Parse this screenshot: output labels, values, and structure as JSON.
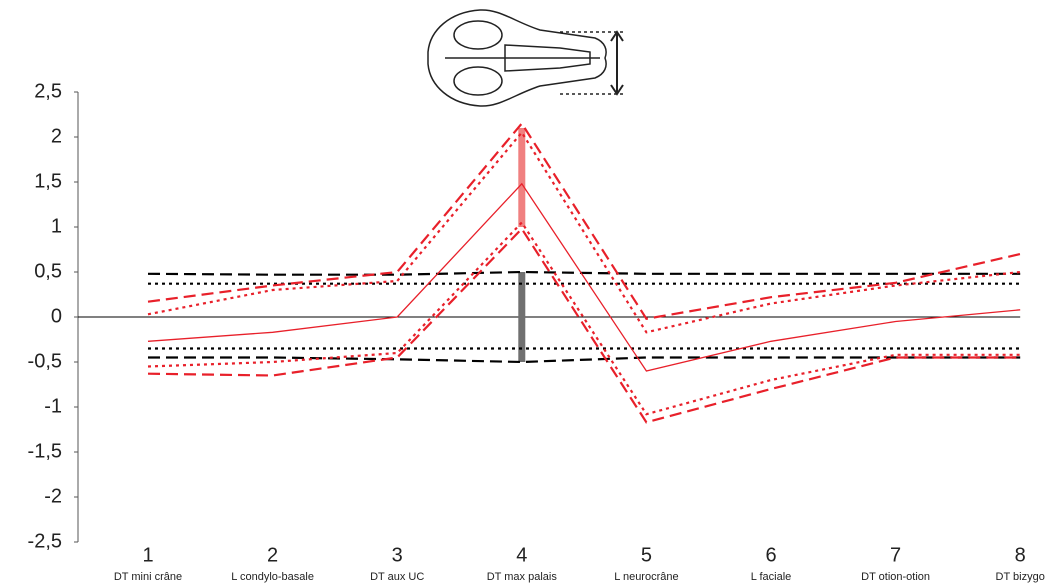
{
  "chart_data": {
    "type": "line",
    "categories": [
      "1",
      "2",
      "3",
      "4",
      "5",
      "6",
      "7",
      "8"
    ],
    "category_labels": [
      "DT mini crâne",
      "L condylo-basale",
      "DT aux UC",
      "DT max palais",
      "L neurocrâne",
      "L faciale",
      "DT otion-otion",
      "DT bizygo"
    ],
    "ylim": [
      -2.5,
      2.5
    ],
    "yticks": [
      {
        "value": 2.5,
        "label": "2,5"
      },
      2,
      {
        "value": 1.5,
        "label": "1,5"
      },
      1,
      {
        "value": 0.5,
        "label": "0,5"
      },
      0,
      {
        "value": -0.5,
        "label": "-0,5"
      },
      -1,
      {
        "value": -1.5,
        "label": "-1,5"
      },
      -2,
      {
        "value": -2.5,
        "label": "-2,5"
      }
    ],
    "zero_line": true,
    "series": [
      {
        "color": "#000000",
        "dash": "dashed",
        "values": [
          0.48,
          0.47,
          0.47,
          0.5,
          0.48,
          0.48,
          0.48,
          0.48
        ]
      },
      {
        "color": "#000000",
        "dash": "dotted",
        "values": [
          0.37,
          0.37,
          0.37,
          0.37,
          0.37,
          0.37,
          0.37,
          0.37
        ]
      },
      {
        "color": "#000000",
        "dash": "dashed",
        "values": [
          -0.45,
          -0.45,
          -0.47,
          -0.5,
          -0.45,
          -0.45,
          -0.45,
          -0.45
        ]
      },
      {
        "color": "#000000",
        "dash": "dotted",
        "values": [
          -0.35,
          -0.35,
          -0.35,
          -0.35,
          -0.35,
          -0.35,
          -0.35,
          -0.35
        ]
      },
      {
        "color": "#e8202a",
        "dash": "solid",
        "values": [
          -0.27,
          -0.17,
          0.0,
          1.48,
          -0.6,
          -0.27,
          -0.05,
          0.08
        ]
      },
      {
        "color": "#e8202a",
        "dash": "dashed",
        "values": [
          0.17,
          0.35,
          0.5,
          2.15,
          -0.02,
          0.22,
          0.38,
          0.7
        ]
      },
      {
        "color": "#e8202a",
        "dash": "dotted",
        "values": [
          0.03,
          0.3,
          0.4,
          2.05,
          -0.17,
          0.15,
          0.35,
          0.5
        ]
      },
      {
        "color": "#e8202a",
        "dash": "dashed",
        "values": [
          -0.63,
          -0.65,
          -0.45,
          0.98,
          -1.17,
          -0.8,
          -0.45,
          -0.45
        ]
      },
      {
        "color": "#e8202a",
        "dash": "dotted",
        "values": [
          -0.55,
          -0.5,
          -0.4,
          1.05,
          -1.08,
          -0.7,
          -0.42,
          -0.42
        ]
      }
    ],
    "ranges": [
      {
        "category": 3,
        "color": "#f08080",
        "low": 1.0,
        "high": 2.1
      },
      {
        "category": 3,
        "color": "#707070",
        "low": -0.5,
        "high": 0.5
      }
    ]
  }
}
